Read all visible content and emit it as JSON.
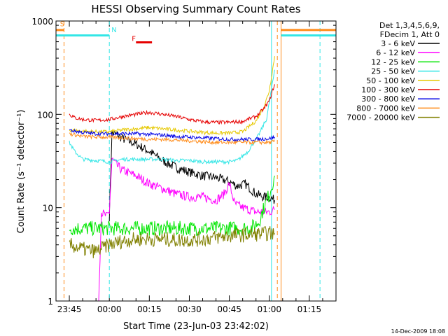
{
  "chart_data": {
    "type": "line",
    "title": "HESSI Observing Summary Count Rates",
    "xlabel": "Start Time (23-Jun-03 23:42:02)",
    "ylabel": "Count Rate (s⁻¹ detector⁻¹)",
    "yscale": "log",
    "xlim_minutes": [
      -20,
      85
    ],
    "ylim": [
      1,
      1000
    ],
    "x_unit": "minutes relative to 00:00",
    "x_ticks": [
      {
        "label": "23:45",
        "x": -15
      },
      {
        "label": "00:00",
        "x": 0
      },
      {
        "label": "00:15",
        "x": 15
      },
      {
        "label": "00:30",
        "x": 30
      },
      {
        "label": "00:45",
        "x": 45
      },
      {
        "label": "01:00",
        "x": 60
      },
      {
        "label": "01:15",
        "x": 75
      }
    ],
    "y_ticks": [
      {
        "label": "1",
        "y": 1
      },
      {
        "label": "10",
        "y": 10
      },
      {
        "label": "100",
        "y": 100
      },
      {
        "label": "1000",
        "y": 1000
      }
    ],
    "legend_header": [
      "Det 1,3,4,5,6,9,",
      "FDecim 1, Att 0"
    ],
    "legend_placement": "right",
    "timestamp": "14-Dec-2009 18:08",
    "flags": [
      {
        "label": "S",
        "color": "#ff8c1a"
      },
      {
        "label": "N",
        "color": "#33e6e6"
      },
      {
        "label": "F",
        "color": "#e60000"
      }
    ],
    "series": [
      {
        "name": "3 - 6 keV",
        "color": "#000000",
        "points": [
          [
            0,
            8
          ],
          [
            1,
            63
          ],
          [
            3,
            60
          ],
          [
            5,
            55
          ],
          [
            10,
            48
          ],
          [
            15,
            40
          ],
          [
            20,
            32
          ],
          [
            25,
            27
          ],
          [
            30,
            24
          ],
          [
            35,
            22
          ],
          [
            40,
            21
          ],
          [
            45,
            19
          ],
          [
            48,
            17
          ],
          [
            51,
            18
          ],
          [
            55,
            14
          ],
          [
            58,
            13
          ],
          [
            60,
            13
          ],
          [
            62,
            12
          ]
        ]
      },
      {
        "name": "6 - 12 keV",
        "color": "#ff00ff",
        "points": [
          [
            -4,
            1
          ],
          [
            -3,
            9
          ],
          [
            -1,
            8
          ],
          [
            0,
            9
          ],
          [
            1,
            33
          ],
          [
            3,
            28
          ],
          [
            5,
            25
          ],
          [
            10,
            22
          ],
          [
            15,
            18
          ],
          [
            20,
            16
          ],
          [
            25,
            14
          ],
          [
            30,
            13
          ],
          [
            35,
            13
          ],
          [
            40,
            12
          ],
          [
            43,
            14
          ],
          [
            45,
            18
          ],
          [
            47,
            11
          ],
          [
            50,
            10
          ],
          [
            55,
            9
          ],
          [
            60,
            9
          ],
          [
            62,
            9.5
          ]
        ]
      },
      {
        "name": "12 - 25 keV",
        "color": "#00e600",
        "points": [
          [
            -15,
            6
          ],
          [
            -10,
            6
          ],
          [
            -5,
            6
          ],
          [
            0,
            6
          ],
          [
            5,
            6
          ],
          [
            10,
            6
          ],
          [
            15,
            6
          ],
          [
            20,
            6
          ],
          [
            25,
            6
          ],
          [
            30,
            6
          ],
          [
            35,
            6
          ],
          [
            40,
            6
          ],
          [
            45,
            6
          ],
          [
            50,
            6
          ],
          [
            53,
            6
          ],
          [
            56,
            7
          ],
          [
            58,
            10
          ],
          [
            60,
            14
          ],
          [
            62,
            22
          ]
        ]
      },
      {
        "name": "25 - 50 keV",
        "color": "#33e6e6",
        "points": [
          [
            -15,
            50
          ],
          [
            -13,
            40
          ],
          [
            -10,
            33
          ],
          [
            -5,
            32
          ],
          [
            0,
            31
          ],
          [
            5,
            33
          ],
          [
            10,
            33
          ],
          [
            15,
            33
          ],
          [
            20,
            33
          ],
          [
            25,
            32
          ],
          [
            30,
            32
          ],
          [
            35,
            31
          ],
          [
            40,
            31
          ],
          [
            45,
            31
          ],
          [
            48,
            32
          ],
          [
            52,
            40
          ],
          [
            56,
            60
          ],
          [
            59,
            90
          ],
          [
            62,
            300
          ]
        ]
      },
      {
        "name": "50 - 100 keV",
        "color": "#e6c800",
        "points": [
          [
            -15,
            68
          ],
          [
            -10,
            66
          ],
          [
            -5,
            65
          ],
          [
            0,
            65
          ],
          [
            5,
            68
          ],
          [
            10,
            70
          ],
          [
            15,
            72
          ],
          [
            20,
            70
          ],
          [
            25,
            68
          ],
          [
            30,
            66
          ],
          [
            35,
            64
          ],
          [
            40,
            63
          ],
          [
            45,
            63
          ],
          [
            50,
            65
          ],
          [
            55,
            85
          ],
          [
            58,
            120
          ],
          [
            60,
            180
          ],
          [
            62,
            420
          ]
        ]
      },
      {
        "name": "100 - 300 keV",
        "color": "#e60000",
        "points": [
          [
            -15,
            100
          ],
          [
            -13,
            92
          ],
          [
            -10,
            88
          ],
          [
            -5,
            86
          ],
          [
            0,
            88
          ],
          [
            5,
            95
          ],
          [
            10,
            100
          ],
          [
            15,
            105
          ],
          [
            20,
            100
          ],
          [
            25,
            95
          ],
          [
            30,
            88
          ],
          [
            35,
            83
          ],
          [
            40,
            82
          ],
          [
            45,
            82
          ],
          [
            50,
            84
          ],
          [
            55,
            95
          ],
          [
            58,
            115
          ],
          [
            60,
            140
          ],
          [
            62,
            210
          ]
        ]
      },
      {
        "name": "300 - 800 keV",
        "color": "#0000e6",
        "points": [
          [
            -15,
            68
          ],
          [
            -10,
            64
          ],
          [
            -5,
            62
          ],
          [
            0,
            62
          ],
          [
            5,
            62
          ],
          [
            10,
            62
          ],
          [
            15,
            61
          ],
          [
            20,
            60
          ],
          [
            25,
            58
          ],
          [
            30,
            57
          ],
          [
            35,
            56
          ],
          [
            40,
            55
          ],
          [
            45,
            54
          ],
          [
            50,
            54
          ],
          [
            55,
            54
          ],
          [
            60,
            55
          ],
          [
            62,
            57
          ]
        ]
      },
      {
        "name": "800 - 7000 keV",
        "color": "#ff8c1a",
        "points": [
          [
            -15,
            62
          ],
          [
            -10,
            58
          ],
          [
            -5,
            57
          ],
          [
            0,
            57
          ],
          [
            5,
            56
          ],
          [
            10,
            55
          ],
          [
            15,
            54
          ],
          [
            20,
            54
          ],
          [
            25,
            53
          ],
          [
            30,
            52
          ],
          [
            35,
            51
          ],
          [
            40,
            50
          ],
          [
            45,
            50
          ],
          [
            50,
            50
          ],
          [
            55,
            50
          ],
          [
            60,
            50
          ],
          [
            62,
            51
          ]
        ]
      },
      {
        "name": "7000 - 20000 keV",
        "color": "#808000",
        "points": [
          [
            -15,
            4
          ],
          [
            -10,
            3.6
          ],
          [
            -5,
            3.4
          ],
          [
            0,
            4
          ],
          [
            5,
            4.4
          ],
          [
            10,
            4.6
          ],
          [
            15,
            4.6
          ],
          [
            20,
            4.6
          ],
          [
            25,
            4.5
          ],
          [
            30,
            4.5
          ],
          [
            35,
            4.6
          ],
          [
            40,
            4.8
          ],
          [
            45,
            5
          ],
          [
            50,
            5.1
          ],
          [
            55,
            5.2
          ],
          [
            60,
            5.3
          ],
          [
            62,
            5.3
          ]
        ]
      }
    ],
    "markers": {
      "orange_dashed_vlines": [
        -17,
        63
      ],
      "cyan_dashed_vlines": [
        0,
        79
      ],
      "cyan_solid_vlines": [
        60.8
      ],
      "orange_solid_vlines": [
        64.4
      ],
      "cyan_segments": [
        {
          "x0": -20,
          "x1": 0,
          "y": 700
        },
        {
          "x0": 64.4,
          "x1": 85,
          "y": 700
        }
      ],
      "orange_segments": [
        {
          "x0": -20,
          "x1": -17,
          "y": 800
        },
        {
          "x0": 64.4,
          "x1": 85,
          "y": 800
        }
      ],
      "red_segment": {
        "x0": 10,
        "x1": 16,
        "y": 590
      }
    }
  }
}
